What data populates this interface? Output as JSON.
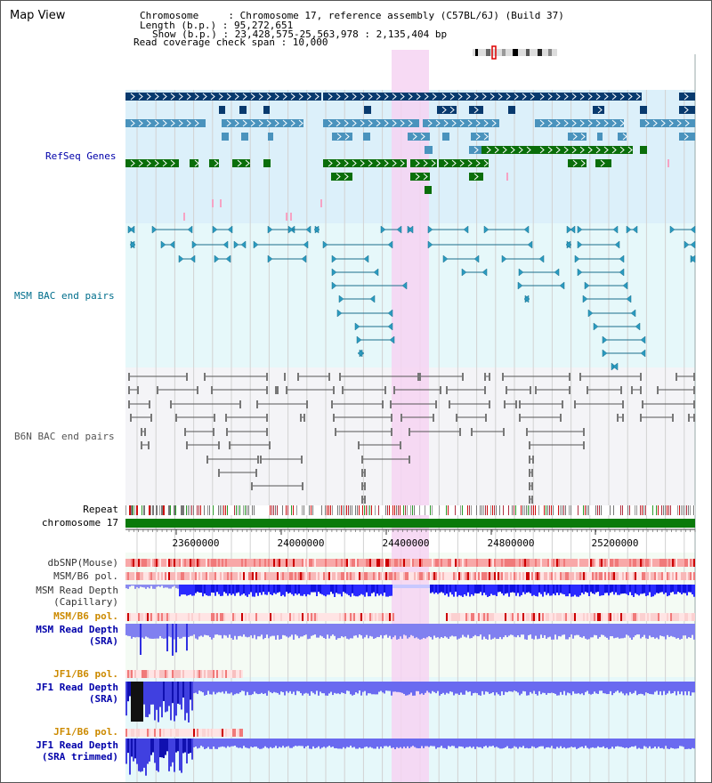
{
  "page": {
    "title": "Map View"
  },
  "info": {
    "chromosome_label": "Chromosome     : Chromosome 17, reference assembly (C57BL/6J) (Build 37)",
    "length_label": "Length (b.p.) : 95,272,651",
    "show_label": "Show (b.p.) : 23,428,575-25,563,978 : 2,135,404 bp",
    "coverage_label": "Read coverage check span : 10,000"
  },
  "tracks": {
    "refseq": "RefSeq Genes",
    "msm_bac": "MSM BAC end pairs",
    "b6n_bac": "B6N BAC end pairs",
    "repeat": "Repeat",
    "chromosome": "chromosome 17",
    "dbsnp": "dbSNP(Mouse)",
    "msm_b6_pol": "MSM/B6 pol.",
    "msm_read_depth_cap_1": "MSM Read Depth",
    "msm_read_depth_cap_2": "(Capillary)",
    "msm_b6_pol_2": "MSM/B6 pol.",
    "msm_read_depth_sra_1": "MSM Read Depth",
    "msm_read_depth_sra_2": "(SRA)",
    "jf1_b6_pol": "JF1/B6 pol.",
    "jf1_read_depth_sra_1": "JF1 Read Depth",
    "jf1_read_depth_sra_2": "(SRA)",
    "jf1_b6_pol_2": "JF1/B6 pol.",
    "jf1_read_depth_trim_1": "JF1 Read Depth",
    "jf1_read_depth_trim_2": "(SRA trimmed)"
  },
  "axis": {
    "ticks": [
      "23600000",
      "24000000",
      "24400000",
      "24800000",
      "25200000"
    ]
  },
  "colors": {
    "gene_dark": "#083a6e",
    "gene_mid": "#4a93bd",
    "gene_green": "#0a6e0a",
    "msm_line": "#1a6e8c",
    "b6n_line": "#555555",
    "highlight": "#f6d4f2",
    "label_blue": "#0000aa",
    "label_teal": "#006e8c",
    "label_orange": "#cc8a00"
  }
}
